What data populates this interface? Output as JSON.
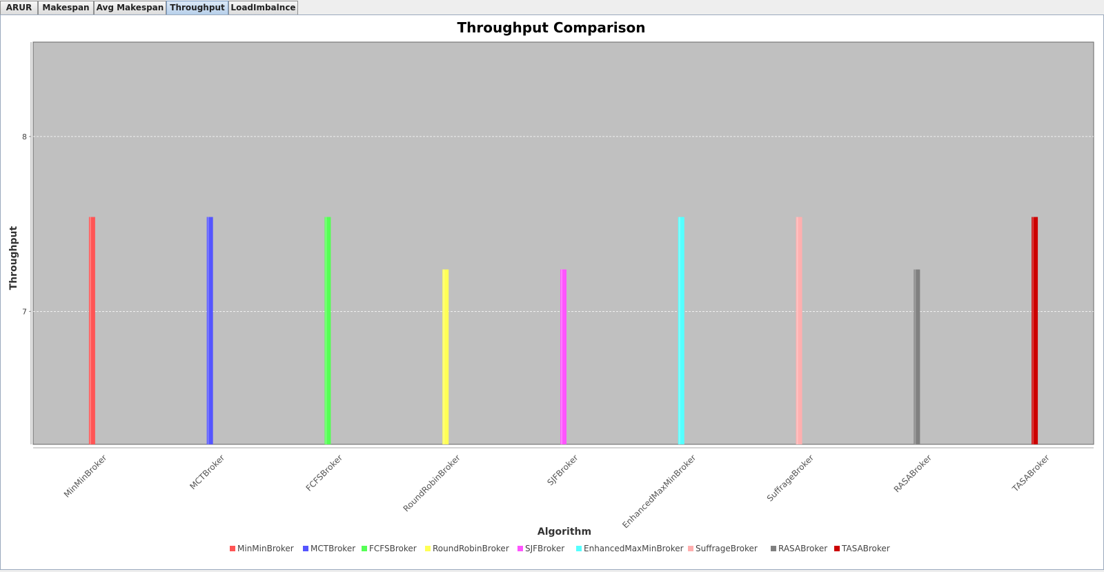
{
  "tabs": [
    {
      "label": "ARUR",
      "selected": false
    },
    {
      "label": "Makespan",
      "selected": false
    },
    {
      "label": "Avg Makespan",
      "selected": false
    },
    {
      "label": "Throughput",
      "selected": true
    },
    {
      "label": "LoadImbalnce",
      "selected": false
    }
  ],
  "chart_data": {
    "type": "bar",
    "title": "Throughput Comparison",
    "xlabel": "Algorithm",
    "ylabel": "Throughput",
    "ylim": [
      6.24,
      8.54
    ],
    "yticks": [
      7,
      8
    ],
    "grid": true,
    "plot_background": "#c0c0c0",
    "legend_position": "bottom",
    "categories": [
      "MinMinBroker",
      "MCTBroker",
      "FCFSBroker",
      "RoundRobinBroker",
      "SJFBroker",
      "EnhancedMaxMinBroker",
      "SuffrageBroker",
      "RASABroker",
      "TASABroker"
    ],
    "series": [
      {
        "name": "MinMinBroker",
        "color": "#ff5555",
        "values": [
          7.54,
          null,
          null,
          null,
          null,
          null,
          null,
          null,
          null
        ]
      },
      {
        "name": "MCTBroker",
        "color": "#5555ff",
        "values": [
          null,
          7.54,
          null,
          null,
          null,
          null,
          null,
          null,
          null
        ]
      },
      {
        "name": "FCFSBroker",
        "color": "#55ff55",
        "values": [
          null,
          null,
          7.54,
          null,
          null,
          null,
          null,
          null,
          null
        ]
      },
      {
        "name": "RoundRobinBroker",
        "color": "#ffff55",
        "values": [
          null,
          null,
          null,
          7.24,
          null,
          null,
          null,
          null,
          null
        ]
      },
      {
        "name": "SJFBroker",
        "color": "#ff55ff",
        "values": [
          null,
          null,
          null,
          null,
          7.24,
          null,
          null,
          null,
          null
        ]
      },
      {
        "name": "EnhancedMaxMinBroker",
        "color": "#55ffff",
        "values": [
          null,
          null,
          null,
          null,
          null,
          7.54,
          null,
          null,
          null
        ]
      },
      {
        "name": "SuffrageBroker",
        "color": "#ffafaf",
        "values": [
          null,
          null,
          null,
          null,
          null,
          null,
          7.54,
          null,
          null
        ]
      },
      {
        "name": "RASABroker",
        "color": "#808080",
        "values": [
          null,
          null,
          null,
          null,
          null,
          null,
          null,
          7.24,
          null
        ]
      },
      {
        "name": "TASABroker",
        "color": "#cc0000",
        "values": [
          null,
          null,
          null,
          null,
          null,
          null,
          null,
          null,
          7.54
        ]
      }
    ]
  }
}
